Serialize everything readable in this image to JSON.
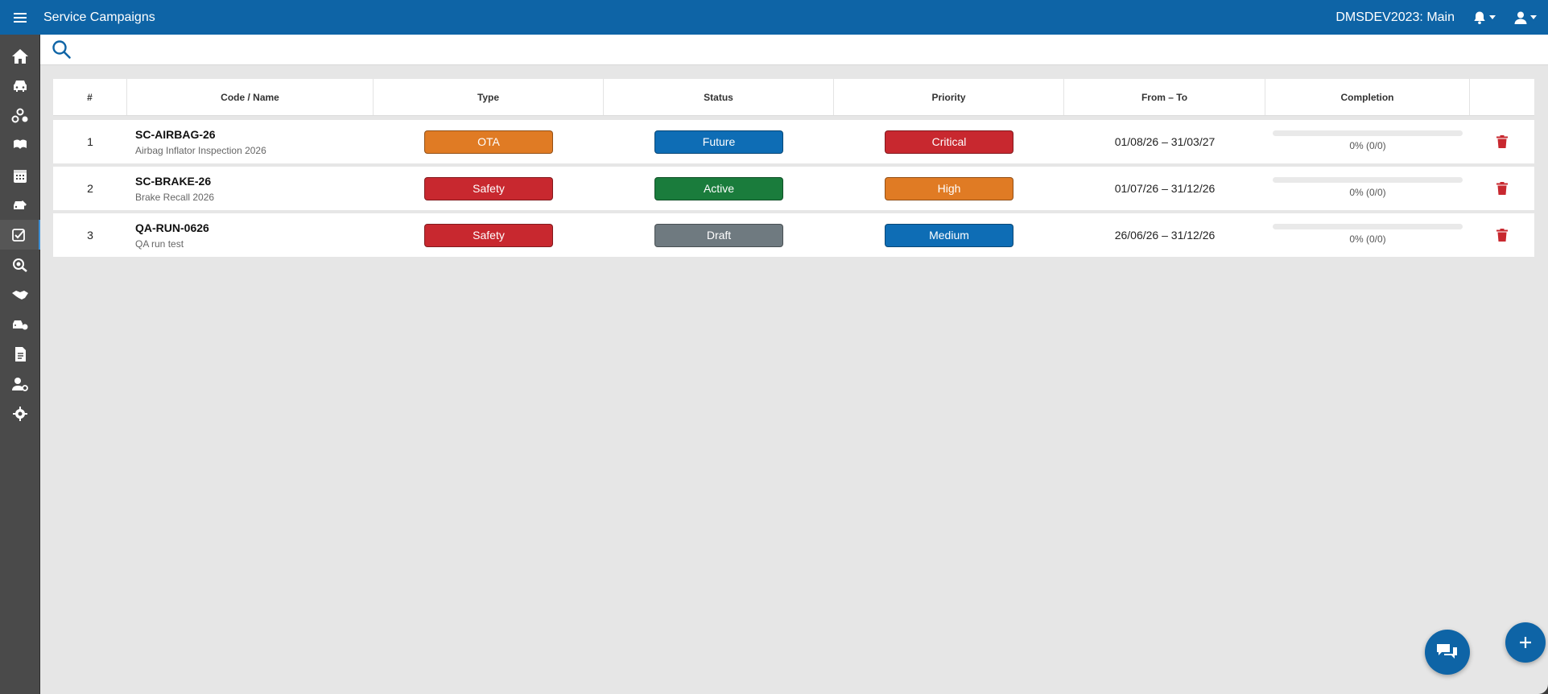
{
  "app": {
    "title": "Service Campaigns",
    "org": "DMSDEV2023: Main"
  },
  "colors": {
    "primary": "#0e64a6",
    "orange": "#e07b24",
    "red": "#c8282f",
    "green": "#1a7c3c",
    "gray": "#6f7a80",
    "blue": "#0e6db5"
  },
  "sidebar": {
    "items": [
      {
        "icon": "home-icon"
      },
      {
        "icon": "car-icon"
      },
      {
        "icon": "car-parts-icon"
      },
      {
        "icon": "customer-icon"
      },
      {
        "icon": "calendar-icon"
      },
      {
        "icon": "car-service-icon"
      },
      {
        "icon": "campaign-check-icon",
        "active": true
      },
      {
        "icon": "inspection-icon"
      },
      {
        "icon": "handshake-icon"
      },
      {
        "icon": "fleet-icon"
      },
      {
        "icon": "document-icon"
      },
      {
        "icon": "user-settings-icon"
      },
      {
        "icon": "gear-icon"
      }
    ]
  },
  "search": {
    "placeholder": ""
  },
  "table": {
    "headers": {
      "num": "#",
      "code": "Code / Name",
      "type": "Type",
      "status": "Status",
      "priority": "Priority",
      "dates": "From – To",
      "completion": "Completion"
    },
    "rows": [
      {
        "num": "1",
        "code": "SC-AIRBAG-26",
        "name": "Airbag Inflator Inspection 2026",
        "type": "OTA",
        "type_color": "#e07b24",
        "status": "Future",
        "status_color": "#0e6db5",
        "priority": "Critical",
        "priority_color": "#c8282f",
        "dates": "01/08/26 – 31/03/27",
        "completion": "0% (0/0)",
        "completion_pct": 0
      },
      {
        "num": "2",
        "code": "SC-BRAKE-26",
        "name": "Brake Recall 2026",
        "type": "Safety",
        "type_color": "#c8282f",
        "status": "Active",
        "status_color": "#1a7c3c",
        "priority": "High",
        "priority_color": "#e07b24",
        "dates": "01/07/26 – 31/12/26",
        "completion": "0% (0/0)",
        "completion_pct": 0
      },
      {
        "num": "3",
        "code": "QA-RUN-0626",
        "name": "QA run test",
        "type": "Safety",
        "type_color": "#c8282f",
        "status": "Draft",
        "status_color": "#6f7a80",
        "priority": "Medium",
        "priority_color": "#0e6db5",
        "dates": "26/06/26 – 31/12/26",
        "completion": "0% (0/0)",
        "completion_pct": 0
      }
    ]
  }
}
